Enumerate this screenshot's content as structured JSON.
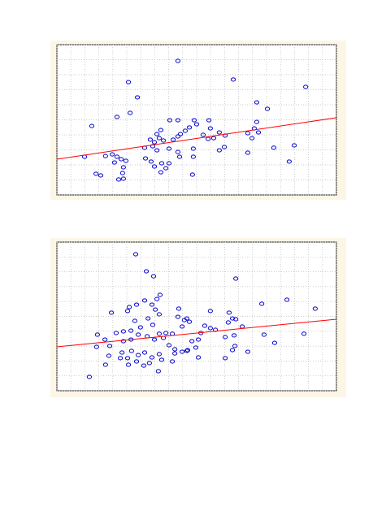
{
  "chart_data": [
    {
      "type": "scatter",
      "color": "#0000cc",
      "grid": true,
      "xlim": [
        0,
        100
      ],
      "ylim": [
        0,
        100
      ],
      "xticks": [
        0,
        5,
        10,
        15,
        20,
        25,
        30,
        35,
        40,
        45,
        50,
        55,
        60,
        65,
        70,
        75,
        80,
        85,
        90,
        95,
        100
      ],
      "yticks": [
        0,
        10,
        20,
        30,
        40,
        50,
        60,
        70,
        80,
        90,
        100
      ],
      "x": [
        43.3,
        63.1,
        89.0,
        25.6,
        28.8,
        71.5,
        75.3,
        26.2,
        21.5,
        12.5,
        40.4,
        43.3,
        49.1,
        50.0,
        54.4,
        54.9,
        45.9,
        47.4,
        71.5,
        70.6,
        72.1,
        69.8,
        68.3,
        58.1,
        60.2,
        56.1,
        54.1,
        52.3,
        37.2,
        35.8,
        36.6,
        38.1,
        41.6,
        43.3,
        44.2,
        33.4,
        34.9,
        31.4,
        34.3,
        35.8,
        40.1,
        43.3,
        43.9,
        48.8,
        48.8,
        58.1,
        59.9,
        68.3,
        77.6,
        84.9,
        83.1,
        9.9,
        17.4,
        19.8,
        21.5,
        23.0,
        24.7,
        20.6,
        23.8,
        31.7,
        33.7,
        34.9,
        37.5,
        39.0,
        37.2,
        40.1,
        48.5,
        14.0,
        15.7,
        22.1,
        23.8,
        23.5
      ],
      "values": [
        89.2,
        76.8,
        71.9,
        75.1,
        64.9,
        61.6,
        57.3,
        54.6,
        51.9,
        45.9,
        49.7,
        49.7,
        49.7,
        47.0,
        49.7,
        44.3,
        42.7,
        44.9,
        48.6,
        44.3,
        41.6,
        37.8,
        41.1,
        41.6,
        39.5,
        37.8,
        37.3,
        40.0,
        43.2,
        40.5,
        37.8,
        36.2,
        36.8,
        38.9,
        40.5,
        36.8,
        35.1,
        31.4,
        32.4,
        29.7,
        30.8,
        28.6,
        25.4,
        30.8,
        25.4,
        29.7,
        31.9,
        28.1,
        31.4,
        33.0,
        22.2,
        25.4,
        25.9,
        27.0,
        25.4,
        23.8,
        22.7,
        21.6,
        18.4,
        24.3,
        22.2,
        18.9,
        21.1,
        17.8,
        15.1,
        21.1,
        13.5,
        14.1,
        13.0,
        10.3,
        10.8,
        14.6
      ],
      "trend": {
        "x": [
          0,
          100
        ],
        "values": [
          23.8,
          51.4
        ],
        "color": "#ff0000"
      }
    },
    {
      "type": "scatter",
      "color": "#0000cc",
      "grid": true,
      "xlim": [
        0,
        100
      ],
      "ylim": [
        0,
        100
      ],
      "xticks": [
        0,
        5,
        10,
        15,
        20,
        25,
        30,
        35,
        40,
        45,
        50,
        55,
        60,
        65,
        70,
        75,
        80,
        85,
        90,
        95,
        100
      ],
      "yticks": [
        0,
        10,
        20,
        30,
        40,
        50,
        60,
        70,
        80,
        90,
        100
      ],
      "x": [
        28.2,
        32.0,
        34.6,
        64.0,
        82.3,
        73.3,
        92.4,
        36.9,
        35.8,
        34.0,
        31.4,
        28.5,
        25.3,
        25.9,
        19.5,
        35.2,
        36.6,
        32.6,
        34.3,
        29.9,
        27.9,
        43.6,
        45.6,
        46.5,
        47.4,
        44.8,
        43.3,
        54.9,
        61.6,
        62.8,
        64.0,
        61.3,
        66.3,
        52.9,
        54.9,
        56.7,
        51.5,
        50.6,
        48.3,
        49.7,
        46.8,
        44.8,
        42.2,
        40.1,
        38.1,
        36.6,
        39.0,
        41.3,
        34.9,
        32.3,
        29.1,
        26.5,
        23.8,
        21.2,
        23.8,
        26.5,
        17.2,
        14.5,
        14.2,
        18.9,
        23.3,
        26.7,
        29.1,
        31.4,
        34.0,
        36.6,
        33.1,
        31.1,
        28.5,
        25.3,
        22.7,
        18.6,
        17.4,
        37.5,
        36.3,
        41.3,
        42.2,
        46.5,
        50.6,
        60.2,
        63.4,
        63.7,
        62.8,
        68.3,
        60.2,
        74.1,
        77.9,
        88.4,
        11.6,
        25.6
      ],
      "values": [
        91.8,
        80.3,
        77.0,
        75.4,
        61.2,
        58.5,
        55.2,
        64.5,
        61.7,
        57.9,
        60.7,
        57.9,
        53.6,
        56.3,
        52.5,
        54.6,
        51.4,
        48.6,
        44.3,
        42.6,
        47.0,
        55.2,
        47.5,
        48.6,
        46.4,
        43.2,
        49.7,
        53.6,
        52.5,
        48.6,
        48.1,
        45.9,
        43.2,
        43.7,
        42.1,
        41.0,
        38.8,
        34.4,
        33.3,
        29.0,
        27.3,
        26.2,
        27.9,
        30.6,
        35.5,
        38.3,
        38.8,
        38.3,
        34.4,
        36.6,
        37.7,
        34.4,
        33.3,
        38.8,
        39.9,
        40.4,
        34.4,
        37.7,
        29.5,
        30.1,
        25.7,
        26.8,
        24.0,
        25.7,
        22.4,
        24.6,
        18.6,
        16.9,
        19.7,
        21.9,
        21.9,
        23.5,
        17.5,
        20.8,
        13.1,
        19.7,
        25.1,
        26.8,
        22.4,
        36.1,
        37.2,
        30.1,
        27.3,
        26.2,
        21.9,
        37.7,
        32.2,
        38.3,
        9.3,
        17.5
      ],
      "trend": {
        "x": [
          0,
          100
        ],
        "values": [
          29.5,
          48.1
        ],
        "color": "#ff0000"
      }
    }
  ]
}
